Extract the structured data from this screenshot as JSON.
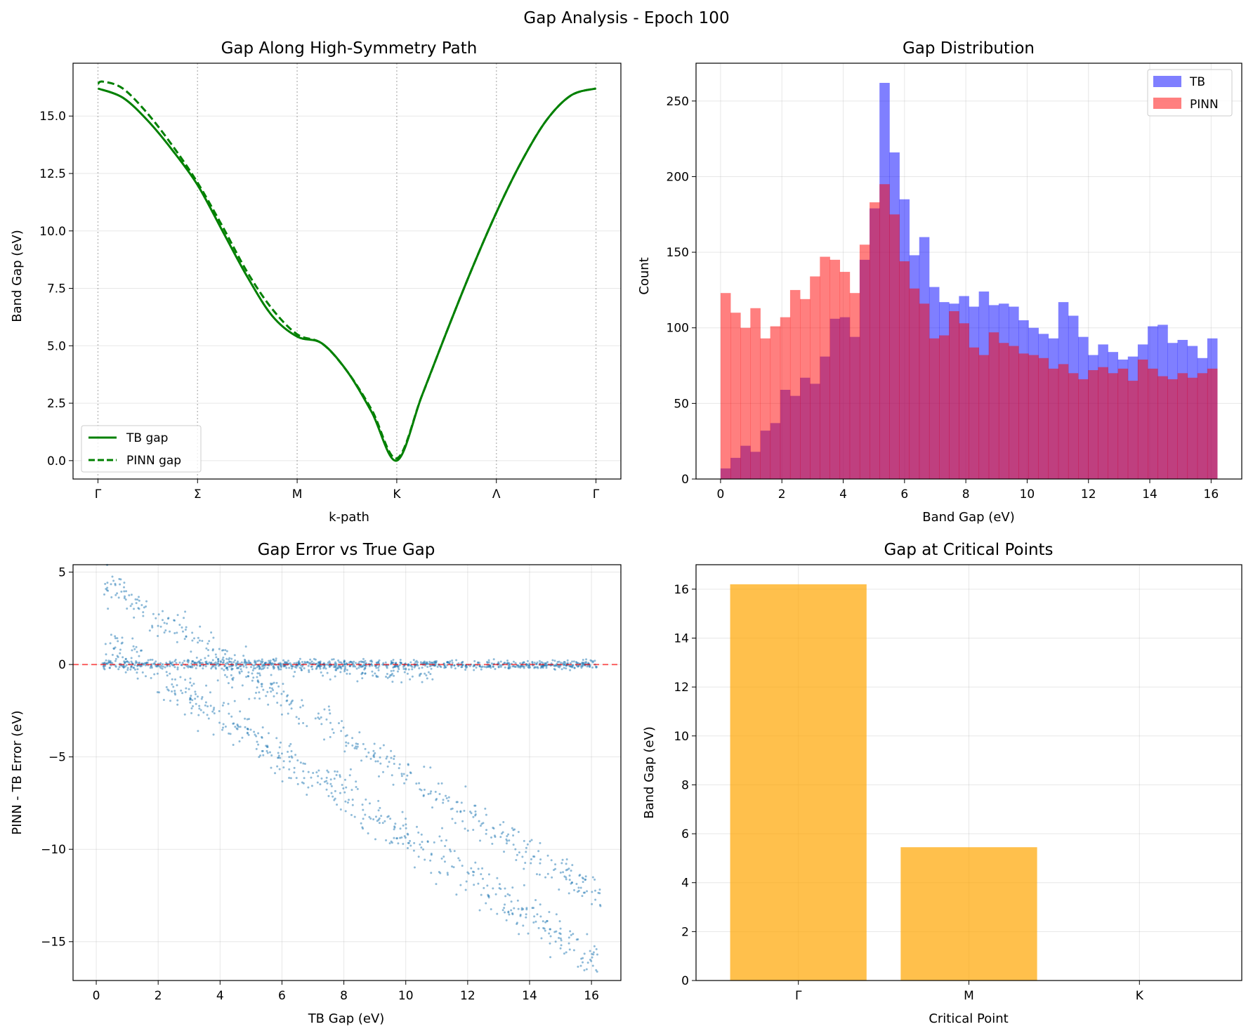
{
  "figure": {
    "suptitle": "Gap Analysis - Epoch 100"
  },
  "colors": {
    "tb_line": "#008000",
    "pinn_line": "#008000",
    "tb_hist": "#0000ff",
    "pinn_hist": "#ff0000",
    "scatter": "#1f77b4",
    "zero_line": "#ff0000",
    "bar": "#ffa500"
  },
  "chart_data": [
    {
      "type": "line",
      "title": "Gap Along High-Symmetry Path",
      "xlabel": "k-path",
      "ylabel": "Band Gap (eV)",
      "xlim": [
        -0.25,
        5.25
      ],
      "ylim": [
        -0.8,
        17.3
      ],
      "xticks": [
        0,
        1,
        2,
        3,
        4,
        5
      ],
      "xtick_labels": [
        "Γ",
        "Σ",
        "M",
        "K",
        "Λ",
        "Γ"
      ],
      "yticks": [
        0.0,
        2.5,
        5.0,
        7.5,
        10.0,
        12.5,
        15.0
      ],
      "ytick_labels": [
        "0.0",
        "2.5",
        "5.0",
        "7.5",
        "10.0",
        "12.5",
        "15.0"
      ],
      "vlines": [
        0,
        1,
        2,
        3,
        4,
        5
      ],
      "legend": [
        "TB gap",
        "PINN gap"
      ],
      "series": [
        {
          "name": "TB gap",
          "style": "solid",
          "x": [
            0,
            0.25,
            0.5,
            0.75,
            1.0,
            1.25,
            1.5,
            1.75,
            2.0,
            2.25,
            2.5,
            2.75,
            3.0,
            3.25,
            3.5,
            3.75,
            4.0,
            4.25,
            4.5,
            4.75,
            5.0
          ],
          "y": [
            16.2,
            15.8,
            14.8,
            13.5,
            12.0,
            10.0,
            8.0,
            6.3,
            5.4,
            5.1,
            3.9,
            2.1,
            0.0,
            2.8,
            5.6,
            8.3,
            10.8,
            13.0,
            14.8,
            15.9,
            16.2
          ]
        },
        {
          "name": "PINN gap",
          "style": "dashed",
          "x": [
            0,
            0.05,
            0.25,
            0.5,
            0.75,
            1.0,
            1.25,
            1.5,
            1.75,
            2.0,
            2.25,
            2.5,
            2.75,
            3.0,
            3.25,
            3.5,
            3.75,
            4.0,
            4.25,
            4.5,
            4.75,
            5.0
          ],
          "y": [
            16.4,
            16.5,
            16.2,
            15.1,
            13.7,
            12.1,
            10.2,
            8.2,
            6.6,
            5.5,
            5.1,
            3.9,
            2.2,
            0.1,
            2.8,
            5.6,
            8.3,
            10.8,
            13.0,
            14.8,
            15.9,
            16.2
          ]
        }
      ]
    },
    {
      "type": "bar",
      "subtype": "histogram",
      "title": "Gap Distribution",
      "xlabel": "Band Gap (eV)",
      "ylabel": "Count",
      "xlim": [
        -0.8,
        17.0
      ],
      "ylim": [
        0,
        275
      ],
      "xticks": [
        0,
        2,
        4,
        6,
        8,
        10,
        12,
        14,
        16
      ],
      "yticks": [
        0,
        50,
        100,
        150,
        200,
        250
      ],
      "bin_start": 0.0,
      "bin_width": 0.324,
      "legend": [
        "TB",
        "PINN"
      ],
      "series": [
        {
          "name": "TB",
          "values": [
            7,
            14,
            22,
            18,
            32,
            37,
            59,
            55,
            67,
            63,
            81,
            106,
            107,
            94,
            145,
            179,
            262,
            216,
            185,
            148,
            160,
            127,
            117,
            116,
            121,
            114,
            124,
            115,
            116,
            114,
            105,
            100,
            96,
            93,
            117,
            108,
            94,
            82,
            89,
            84,
            79,
            81,
            89,
            101,
            102,
            90,
            92,
            88,
            80,
            93
          ]
        },
        {
          "name": "PINN",
          "values": [
            123,
            110,
            100,
            113,
            93,
            101,
            107,
            125,
            119,
            134,
            147,
            145,
            137,
            123,
            155,
            183,
            195,
            175,
            144,
            126,
            116,
            93,
            95,
            111,
            103,
            87,
            82,
            97,
            90,
            88,
            83,
            82,
            80,
            73,
            76,
            70,
            66,
            72,
            74,
            70,
            73,
            65,
            79,
            73,
            68,
            66,
            70,
            67,
            70,
            73
          ]
        }
      ]
    },
    {
      "type": "scatter",
      "title": "Gap Error vs True Gap",
      "xlabel": "TB Gap (eV)",
      "ylabel": "PINN - TB Error (eV)",
      "xlim": [
        -0.75,
        16.95
      ],
      "ylim": [
        -17.1,
        5.4
      ],
      "xticks": [
        0,
        2,
        4,
        6,
        8,
        10,
        12,
        14,
        16
      ],
      "yticks": [
        -15,
        -10,
        -5,
        0,
        5
      ],
      "ytick_labels": [
        "−15",
        "−10",
        "−5",
        "0",
        "5"
      ],
      "hline": 0,
      "branches": [
        {
          "name": "near-zero",
          "x_range": [
            0.2,
            16.2
          ],
          "y_start": 0.0,
          "y_end": 0.0,
          "spread": 0.12
        },
        {
          "name": "upper-diagonal",
          "x_range": [
            0.2,
            16.3
          ],
          "y_start": 4.4,
          "y_end": -12.6,
          "spread": 0.5
        },
        {
          "name": "lower-diagonal",
          "x_range": [
            0.3,
            16.2
          ],
          "y_start": 1.2,
          "y_end": -16.0,
          "spread": 0.6
        },
        {
          "name": "shallow-dip",
          "x_range": [
            5.0,
            11.0
          ],
          "y_start": 0.0,
          "y_end": -0.6,
          "spread": 0.25
        }
      ]
    },
    {
      "type": "bar",
      "title": "Gap at Critical Points",
      "xlabel": "Critical Point",
      "ylabel": "Band Gap (eV)",
      "categories": [
        "Γ",
        "M",
        "K"
      ],
      "values": [
        16.2,
        5.45,
        0.0
      ],
      "ylim": [
        0,
        17.0
      ],
      "yticks": [
        0,
        2,
        4,
        6,
        8,
        10,
        12,
        14,
        16
      ]
    }
  ]
}
